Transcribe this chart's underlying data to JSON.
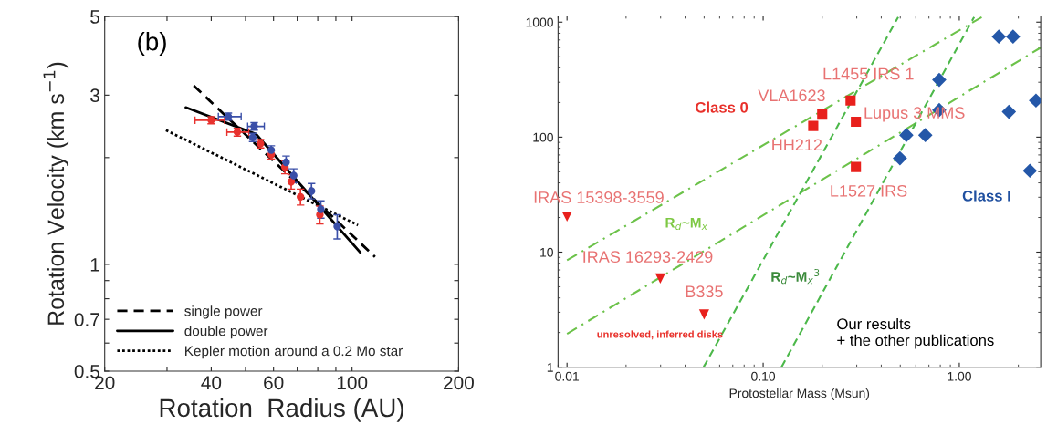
{
  "chart_data": [
    {
      "type": "scatter",
      "xlabel": "Rotation  Radius (AU)",
      "ylabel": "Rotation Velocity (km s$^{−1}$)",
      "log": "xy",
      "xlim": [
        20,
        200
      ],
      "ylim": [
        0.5,
        5
      ],
      "xticks": [
        20,
        {
          "value": 30,
          "label": null
        },
        40,
        {
          "value": 50,
          "label": null
        },
        60,
        {
          "value": 70,
          "label": null
        },
        {
          "value": 80,
          "label": null
        },
        {
          "value": 90,
          "label": null
        },
        100,
        200
      ],
      "yticks": [
        0.5,
        {
          "value": 0.6,
          "label": null
        },
        0.7,
        {
          "value": 0.8,
          "label": null
        },
        {
          "value": 0.9,
          "label": null
        },
        1,
        {
          "value": 2,
          "label": null
        },
        3,
        5
      ],
      "annotations": [
        "(b)"
      ],
      "legend": "bottom left",
      "grid": false,
      "series": [
        {
          "type": "line",
          "name": "single power",
          "color": "#000000",
          "line_style": "dashed",
          "marker": "none",
          "x": [
            35.7,
            116.1
          ],
          "values": [
            3.19,
            1.05
          ]
        },
        {
          "type": "line",
          "name": "double power",
          "color": "#000000",
          "line_style": "solid",
          "marker": "none",
          "x": [
            33.9,
            53.5,
            105.5
          ],
          "values": [
            2.77,
            2.33,
            1.08
          ]
        },
        {
          "type": "line",
          "name": "Kepler motion around a 0.2 Mo star",
          "color": "#000000",
          "line_style": "dotted",
          "marker": "none",
          "x": [
            29.8,
            103.9
          ],
          "values": [
            2.39,
            1.29
          ]
        },
        {
          "type": "scatter",
          "color": "#e8322e",
          "marker": "circle",
          "x": [
            40.0,
            47.4,
            55.1,
            59.1,
            64.6,
            67.3,
            71.5,
            81.1
          ],
          "values": [
            2.55,
            2.36,
            2.19,
            2.04,
            1.88,
            1.71,
            1.55,
            1.38
          ],
          "errors": [
            0.06,
            0.06,
            0.06,
            0.06,
            0.08,
            0.08,
            0.08,
            0.08
          ],
          "xerrors": [
            [
              36.0,
              43.6
            ],
            [
              44.3,
              51.1
            ],
            null,
            null,
            null,
            null,
            null,
            null
          ]
        },
        {
          "type": "scatter",
          "color": "#3a4fa8",
          "marker": "circle",
          "x": [
            44.7,
            52.9,
            52.4,
            59.1,
            65.1,
            68.4,
            76.8,
            81.6,
            90.8
          ],
          "values": [
            2.61,
            2.45,
            2.28,
            2.1,
            1.94,
            1.78,
            1.61,
            1.43,
            1.28
          ],
          "errors": [
            0.06,
            0.06,
            0.06,
            0.06,
            0.08,
            0.08,
            0.08,
            0.08,
            0.1
          ],
          "xerrors": [
            [
              41.9,
              48.6
            ],
            [
              50.7,
              56.5
            ],
            null,
            null,
            null,
            null,
            null,
            null,
            null
          ]
        }
      ]
    },
    {
      "type": "scatter",
      "xlabel": "Protostellar Mass (Msun)",
      "log": "xy",
      "xlim": [
        0.009,
        2.6
      ],
      "ylim": [
        1,
        1130
      ],
      "xticks": [
        {
          "value": 0.01,
          "label": "0.01"
        },
        {
          "value": 0.1,
          "label": "0.10"
        },
        {
          "value": 1,
          "label": "1.00"
        }
      ],
      "yticks": [
        1,
        10,
        100,
        1000
      ],
      "grid": false,
      "annotations": [
        "Class 0",
        "Class I",
        "R$_{d}$~M$_{x}$",
        "R$_{d}$~M$_{x}$$^{3}$",
        "unresolved, inferred disks",
        "Our results\n+ the other publications",
        {
          "text": "L1455 IRS 1",
          "x": 0.279,
          "y": 208
        },
        {
          "text": "VLA1623",
          "x": 0.2,
          "y": 157
        },
        {
          "text": "HH212",
          "x": 0.18,
          "y": 125
        },
        {
          "text": "Lupus 3 MMS",
          "x": 0.297,
          "y": 136
        },
        {
          "text": "L1527 IRS",
          "x": 0.297,
          "y": 55
        },
        {
          "text": "IRAS 15398-3559",
          "x": 0.01,
          "y": 20.4
        },
        {
          "text": "IRAS 16293-2429",
          "x": 0.0299,
          "y": 5.9
        },
        {
          "text": "B335",
          "x": 0.05,
          "y": 2.87
        }
      ],
      "series": [
        {
          "type": "line",
          "color": "#6cc24a",
          "line_style": "dashdot",
          "marker": "none",
          "x": [
            0.01,
            1.3
          ],
          "values": [
            8.5,
            1105
          ]
        },
        {
          "type": "line",
          "color": "#6cc24a",
          "line_style": "dashdot",
          "marker": "none",
          "x": [
            0.01,
            2.6
          ],
          "values": [
            1.95,
            600
          ]
        },
        {
          "type": "line",
          "color": "#4cb84a",
          "line_style": "dashed",
          "marker": "none",
          "x": [
            0.0497,
            0.488
          ],
          "values": [
            1,
            1107
          ]
        },
        {
          "type": "line",
          "color": "#4cb84a",
          "line_style": "dashed",
          "marker": "none",
          "x": [
            0.124,
            1.19
          ],
          "values": [
            1,
            1107
          ]
        },
        {
          "type": "scatter",
          "color": "#e8201c",
          "marker": "square",
          "x": [
            0.279,
            0.2,
            0.18,
            0.297,
            0.297
          ],
          "values": [
            208,
            157,
            125,
            136,
            55
          ]
        },
        {
          "type": "scatter",
          "color": "#e8201c",
          "marker": "triangle",
          "x": [
            0.01,
            0.0299,
            0.05
          ],
          "values": [
            20.4,
            5.9,
            2.87
          ]
        },
        {
          "type": "scatter",
          "color": "#2457a8",
          "marker": "diamond",
          "x": [
            1.59,
            1.88,
            0.79,
            2.46,
            0.79,
            1.79,
            0.537,
            0.671,
            0.498,
            2.29
          ],
          "values": [
            748,
            748,
            315,
            208,
            172,
            166,
            104,
            104,
            65.5,
            51
          ]
        }
      ]
    }
  ]
}
